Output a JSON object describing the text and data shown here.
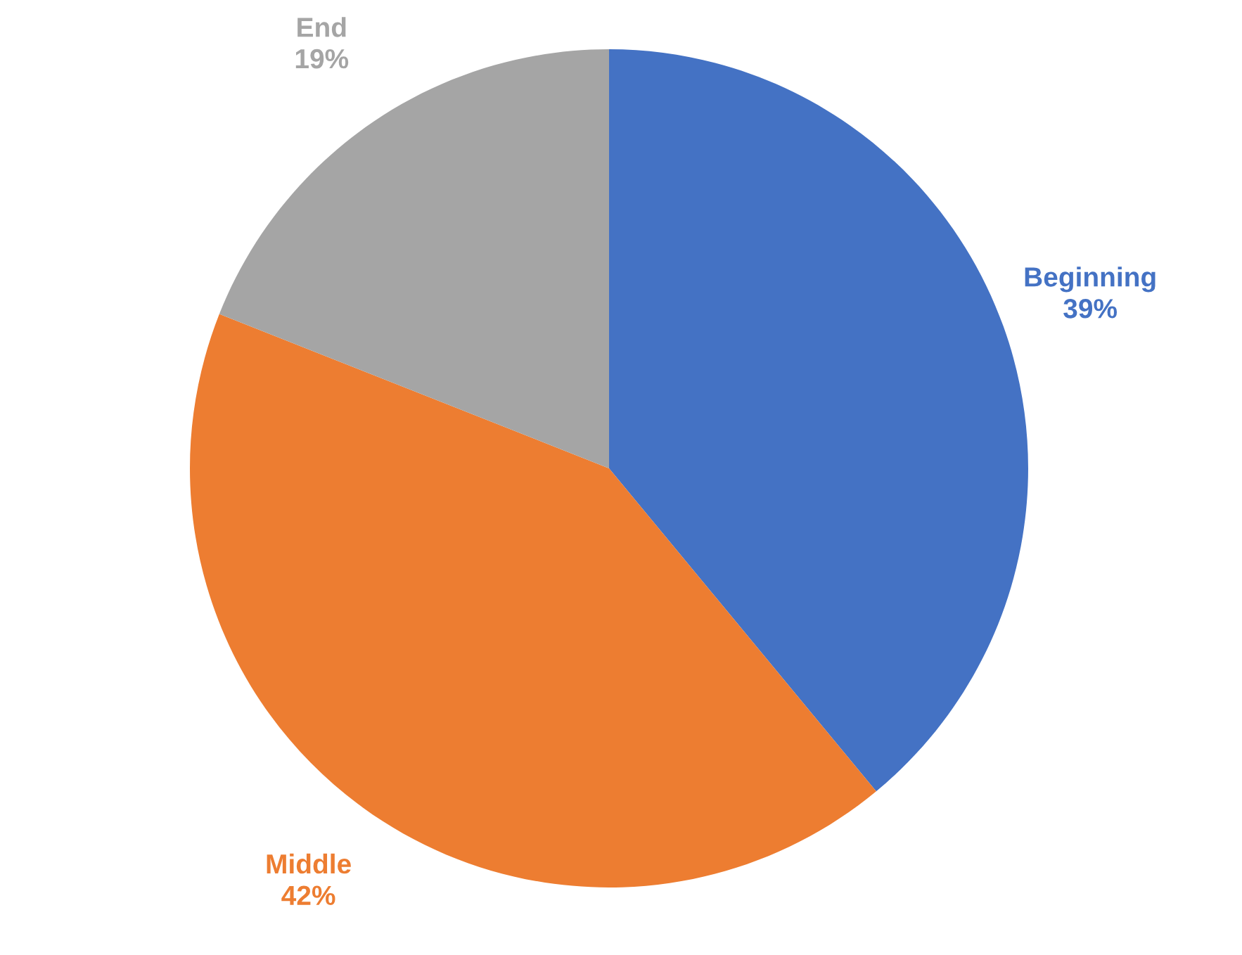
{
  "chart_data": {
    "type": "pie",
    "categories": [
      "Beginning",
      "Middle",
      "End"
    ],
    "values": [
      39,
      42,
      19
    ],
    "value_labels": [
      "39%",
      "42%",
      "19%"
    ],
    "colors": [
      "#4472c4",
      "#ed7d31",
      "#a5a5a5"
    ],
    "legend": false
  }
}
